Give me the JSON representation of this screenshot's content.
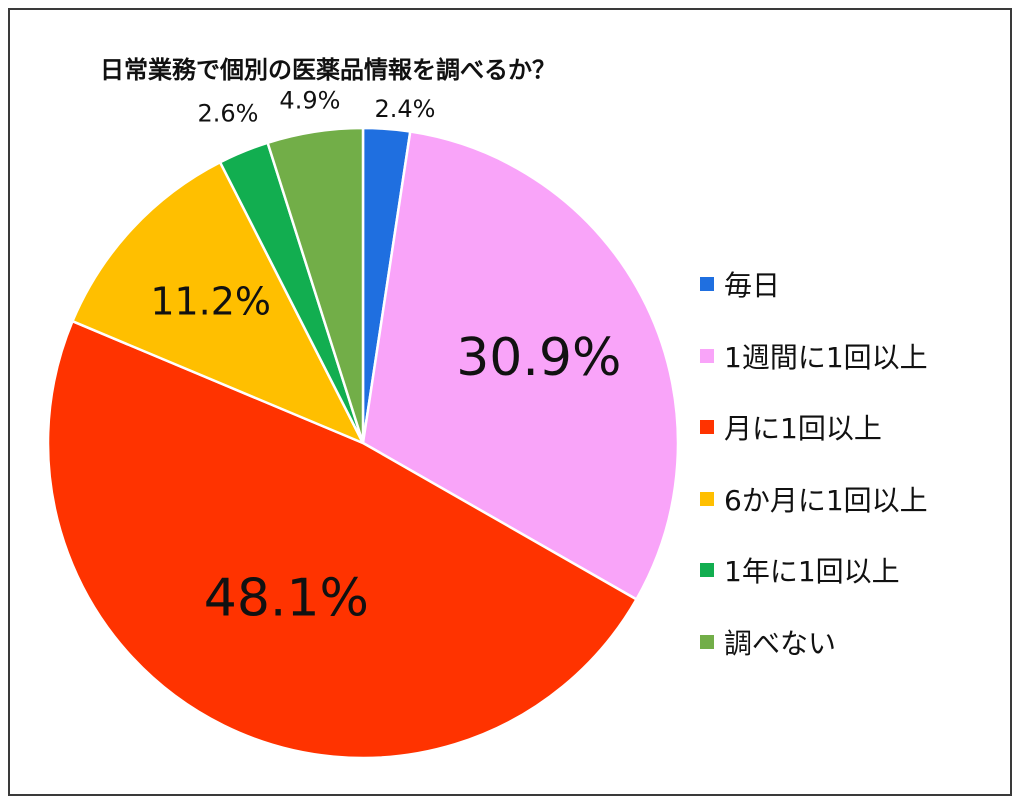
{
  "chart_data": {
    "type": "pie",
    "title": "日常業務で個別の医薬品情報を調べるか？",
    "unit": "%",
    "slices": [
      {
        "label": "毎日",
        "value": 2.4,
        "display": "2.4%",
        "color": "#1F6FE0"
      },
      {
        "label": "1週間に1回以上",
        "value": 30.9,
        "display": "30.9%",
        "color": "#F9A4F9"
      },
      {
        "label": "月に1回以上",
        "value": 48.1,
        "display": "48.1%",
        "color": "#FF3300"
      },
      {
        "label": "6か月に1回以上",
        "value": 11.2,
        "display": "11.2%",
        "color": "#FFBF00"
      },
      {
        "label": "1年に1回以上",
        "value": 2.6,
        "display": "2.6%",
        "color": "#12AE50"
      },
      {
        "label": "調べない",
        "value": 4.9,
        "display": "4.9%",
        "color": "#72AE48"
      }
    ],
    "start_angle": "12 o'clock",
    "direction": "clockwise",
    "legend_position": "right"
  }
}
